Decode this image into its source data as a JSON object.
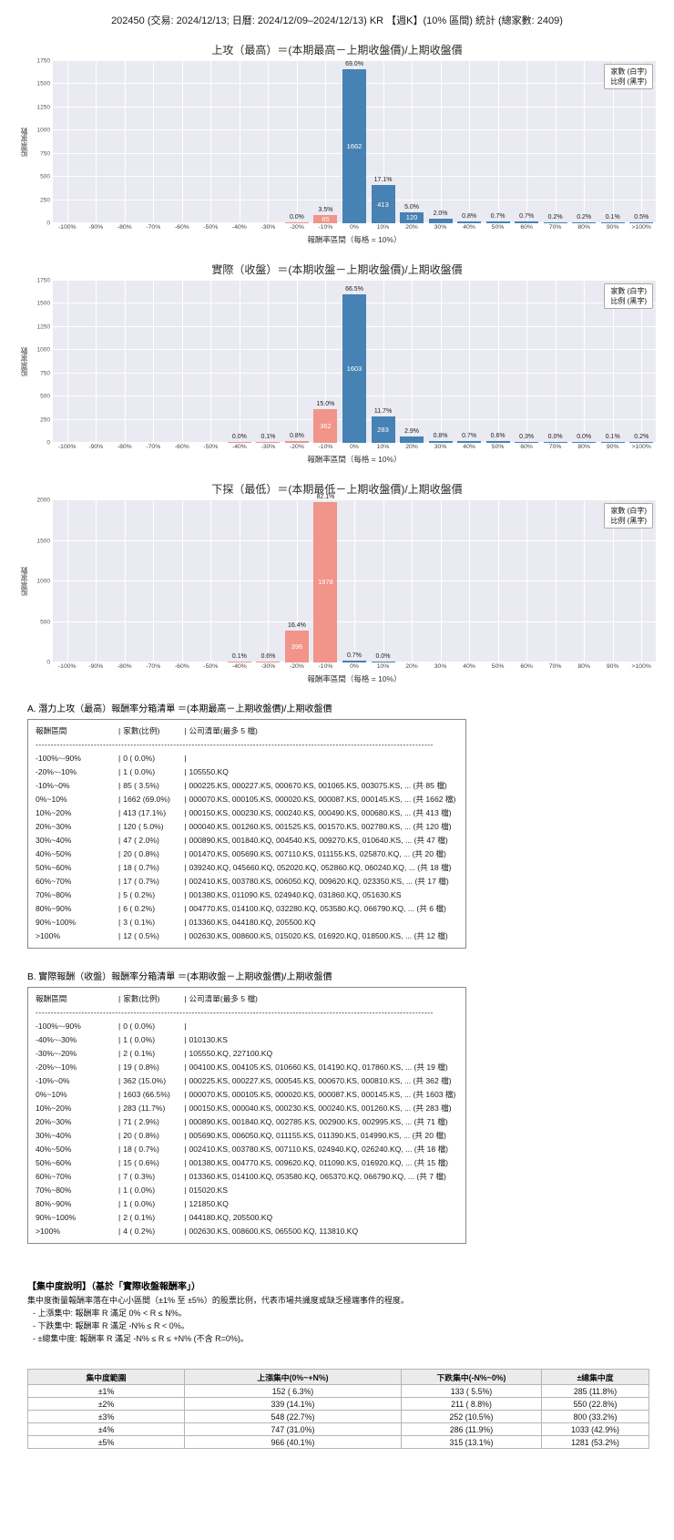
{
  "page_title": "202450 (交易: 2024/12/13; 日曆: 2024/12/09–2024/12/13) KR 【週K】(10% 區間) 統計 (總家數: 2409)",
  "total_companies": 2409,
  "colors": {
    "bar_negative": "#f1948a",
    "bar_positive": "#4682b4",
    "plot_bg": "#eaeaf2",
    "grid": "#ffffff",
    "table_header_bg": "#ebebeb"
  },
  "legend": {
    "counts_label": "家數 (白字)",
    "pct_label": "比例 (黑字)"
  },
  "chart_data": [
    {
      "type": "bar",
      "key": "upside-high",
      "title": "上攻（最高）＝(本期最高－上期收盤價)/上期收盤價",
      "xlabel": "報酬率區間（每格 = 10%）",
      "ylabel": "股票家數",
      "ylim": [
        0,
        1750
      ],
      "yticks": [
        0,
        250,
        500,
        750,
        1000,
        1250,
        1500,
        1750
      ],
      "categories": [
        "-100%",
        "-90%",
        "-80%",
        "-70%",
        "-60%",
        "-50%",
        "-40%",
        "-30%",
        "-20%",
        "-10%",
        "0%",
        "10%",
        "20%",
        "30%",
        "40%",
        "50%",
        "60%",
        "70%",
        "80%",
        "90%",
        ">100%"
      ],
      "counts": [
        0,
        0,
        0,
        0,
        0,
        0,
        0,
        0,
        1,
        85,
        1662,
        413,
        120,
        47,
        20,
        18,
        17,
        5,
        6,
        3,
        12
      ],
      "pct_labels": [
        "",
        "",
        "",
        "",
        "",
        "",
        "",
        "",
        "0.0%",
        "3.5%",
        "69.0%",
        "17.1%",
        "5.0%",
        "2.0%",
        "0.8%",
        "0.7%",
        "0.7%",
        "0.2%",
        "0.2%",
        "0.1%",
        "0.5%"
      ],
      "count_labels": [
        "",
        "",
        "",
        "",
        "",
        "",
        "",
        "",
        "",
        "85",
        "1662",
        "413",
        "120",
        "",
        "",
        "",
        "",
        "",
        "",
        "",
        ""
      ]
    },
    {
      "type": "bar",
      "key": "actual-close",
      "title": "實際（收盤）＝(本期收盤－上期收盤價)/上期收盤價",
      "xlabel": "報酬率區間（每格 = 10%）",
      "ylabel": "股票家數",
      "ylim": [
        0,
        1750
      ],
      "yticks": [
        0,
        250,
        500,
        750,
        1000,
        1250,
        1500,
        1750
      ],
      "categories": [
        "-100%",
        "-90%",
        "-80%",
        "-70%",
        "-60%",
        "-50%",
        "-40%",
        "-30%",
        "-20%",
        "-10%",
        "0%",
        "10%",
        "20%",
        "30%",
        "40%",
        "50%",
        "60%",
        "70%",
        "80%",
        "90%",
        ">100%"
      ],
      "counts": [
        0,
        0,
        0,
        0,
        0,
        0,
        1,
        2,
        19,
        362,
        1603,
        283,
        71,
        20,
        18,
        15,
        7,
        1,
        1,
        2,
        4
      ],
      "pct_labels": [
        "",
        "",
        "",
        "",
        "",
        "",
        "0.0%",
        "0.1%",
        "0.8%",
        "15.0%",
        "66.5%",
        "11.7%",
        "2.9%",
        "0.8%",
        "0.7%",
        "0.6%",
        "0.3%",
        "0.0%",
        "0.0%",
        "0.1%",
        "0.2%"
      ],
      "count_labels": [
        "",
        "",
        "",
        "",
        "",
        "",
        "",
        "",
        "",
        "362",
        "1603",
        "283",
        "",
        "",
        "",
        "",
        "",
        "",
        "",
        "",
        ""
      ]
    },
    {
      "type": "bar",
      "key": "downside-low",
      "title": "下探（最低）＝(本期最低－上期收盤價)/上期收盤價",
      "xlabel": "報酬率區間（每格 = 10%）",
      "ylabel": "股票家數",
      "ylim": [
        0,
        2000
      ],
      "yticks": [
        0,
        500,
        1000,
        1500,
        2000
      ],
      "categories": [
        "-100%",
        "-90%",
        "-80%",
        "-70%",
        "-60%",
        "-50%",
        "-40%",
        "-30%",
        "-20%",
        "-10%",
        "0%",
        "10%",
        "20%",
        "30%",
        "40%",
        "50%",
        "60%",
        "70%",
        "80%",
        "90%",
        ">100%"
      ],
      "counts": [
        0,
        0,
        0,
        0,
        0,
        0,
        2,
        14,
        396,
        1978,
        18,
        1,
        0,
        0,
        0,
        0,
        0,
        0,
        0,
        0,
        0
      ],
      "pct_labels": [
        "",
        "",
        "",
        "",
        "",
        "",
        "0.1%",
        "0.6%",
        "16.4%",
        "82.1%",
        "0.7%",
        "0.0%",
        "",
        "",
        "",
        "",
        "",
        "",
        "",
        "",
        ""
      ],
      "count_labels": [
        "",
        "",
        "",
        "",
        "",
        "",
        "",
        "",
        "396",
        "1978",
        "",
        "",
        "",
        "",
        "",
        "",
        "",
        "",
        "",
        "",
        ""
      ]
    }
  ],
  "list_a": {
    "heading": "A. 潛力上攻（最高）報酬率分箱清單 ＝(本期最高－上期收盤價)/上期收盤價",
    "header": {
      "range": "報酬區間",
      "count": "家數(比例)",
      "companies": "公司清單(最多 5 檔)"
    },
    "rows": [
      {
        "range": "-100%~-90%",
        "count": "0 ( 0.0%)",
        "companies": ""
      },
      {
        "range": "-20%~-10%",
        "count": "1 ( 0.0%)",
        "companies": "105550.KQ"
      },
      {
        "range": "-10%~0%",
        "count": "85 ( 3.5%)",
        "companies": "000225.KS, 000227.KS, 000670.KS, 001065.KS, 003075.KS, ... (共 85 檔)"
      },
      {
        "range": "0%~10%",
        "count": "1662 (69.0%)",
        "companies": "000070.KS, 000105.KS, 000020.KS, 000087.KS, 000145.KS, ... (共 1662 檔)"
      },
      {
        "range": "10%~20%",
        "count": "413 (17.1%)",
        "companies": "000150.KS, 000230.KS, 000240.KS, 000490.KS, 000680.KS, ... (共 413 檔)"
      },
      {
        "range": "20%~30%",
        "count": "120 ( 5.0%)",
        "companies": "000040.KS, 001260.KS, 001525.KS, 001570.KS, 002780.KS, ... (共 120 檔)"
      },
      {
        "range": "30%~40%",
        "count": "47 ( 2.0%)",
        "companies": "000890.KS, 001840.KQ, 004540.KS, 009270.KS, 010640.KS, ... (共 47 檔)"
      },
      {
        "range": "40%~50%",
        "count": "20 ( 0.8%)",
        "companies": "001470.KS, 005690.KS, 007110.KS, 011155.KS, 025870.KQ, ... (共 20 檔)"
      },
      {
        "range": "50%~60%",
        "count": "18 ( 0.7%)",
        "companies": "039240.KQ, 045660.KQ, 052020.KQ, 052860.KQ, 060240.KQ, ... (共 18 檔)"
      },
      {
        "range": "60%~70%",
        "count": "17 ( 0.7%)",
        "companies": "002410.KS, 003780.KS, 006050.KQ, 009620.KQ, 023350.KS, ... (共 17 檔)"
      },
      {
        "range": "70%~80%",
        "count": "5 ( 0.2%)",
        "companies": "001380.KS, 011090.KS, 024940.KQ, 031860.KQ, 051630.KS"
      },
      {
        "range": "80%~90%",
        "count": "6 ( 0.2%)",
        "companies": "004770.KS, 014100.KQ, 032280.KQ, 053580.KQ, 066790.KQ, ... (共 6 檔)"
      },
      {
        "range": "90%~100%",
        "count": "3 ( 0.1%)",
        "companies": "013360.KS, 044180.KQ, 205500.KQ"
      },
      {
        "range": ">100%",
        "count": "12 ( 0.5%)",
        "companies": "002630.KS, 008600.KS, 015020.KS, 016920.KQ, 018500.KS, ... (共 12 檔)"
      }
    ]
  },
  "list_b": {
    "heading": "B. 實際報酬（收盤）報酬率分箱清單 ＝(本期收盤－上期收盤價)/上期收盤價",
    "header": {
      "range": "報酬區間",
      "count": "家數(比例)",
      "companies": "公司清單(最多 5 檔)"
    },
    "rows": [
      {
        "range": "-100%~-90%",
        "count": "0 ( 0.0%)",
        "companies": ""
      },
      {
        "range": "-40%~-30%",
        "count": "1 ( 0.0%)",
        "companies": "010130.KS"
      },
      {
        "range": "-30%~-20%",
        "count": "2 ( 0.1%)",
        "companies": "105550.KQ, 227100.KQ"
      },
      {
        "range": "-20%~-10%",
        "count": "19 ( 0.8%)",
        "companies": "004100.KS, 004105.KS, 010660.KS, 014190.KQ, 017860.KS, ... (共 19 檔)"
      },
      {
        "range": "-10%~0%",
        "count": "362 (15.0%)",
        "companies": "000225.KS, 000227.KS, 000545.KS, 000670.KS, 000810.KS, ... (共 362 檔)"
      },
      {
        "range": "0%~10%",
        "count": "1603 (66.5%)",
        "companies": "000070.KS, 000105.KS, 000020.KS, 000087.KS, 000145.KS, ... (共 1603 檔)"
      },
      {
        "range": "10%~20%",
        "count": "283 (11.7%)",
        "companies": "000150.KS, 000040.KS, 000230.KS, 000240.KS, 001260.KS, ... (共 283 檔)"
      },
      {
        "range": "20%~30%",
        "count": "71 ( 2.9%)",
        "companies": "000890.KS, 001840.KQ, 002785.KS, 002900.KS, 002995.KS, ... (共 71 檔)"
      },
      {
        "range": "30%~40%",
        "count": "20 ( 0.8%)",
        "companies": "005690.KS, 006050.KQ, 011155.KS, 011390.KS, 014990.KS, ... (共 20 檔)"
      },
      {
        "range": "40%~50%",
        "count": "18 ( 0.7%)",
        "companies": "002410.KS, 003780.KS, 007110.KS, 024940.KQ, 026240.KQ, ... (共 18 檔)"
      },
      {
        "range": "50%~60%",
        "count": "15 ( 0.6%)",
        "companies": "001380.KS, 004770.KS, 009620.KQ, 011090.KS, 016920.KQ, ... (共 15 檔)"
      },
      {
        "range": "60%~70%",
        "count": "7 ( 0.3%)",
        "companies": "013360.KS, 014100.KQ, 053580.KQ, 065370.KQ, 066790.KQ, ... (共 7 檔)"
      },
      {
        "range": "70%~80%",
        "count": "1 ( 0.0%)",
        "companies": "015020.KS"
      },
      {
        "range": "80%~90%",
        "count": "1 ( 0.0%)",
        "companies": "121850.KQ"
      },
      {
        "range": "90%~100%",
        "count": "2 ( 0.1%)",
        "companies": "044180.KQ, 205500.KQ"
      },
      {
        "range": ">100%",
        "count": "4 ( 0.2%)",
        "companies": "002630.KS, 008600.KS, 065500.KQ, 113810.KQ"
      }
    ]
  },
  "concentration": {
    "heading": "【集中度說明】（基於「實際收盤報酬率」）",
    "description": "集中度衡量報酬率落在中心小區間（±1% 至 ±5%）的股票比例，代表市場共識度或缺乏極端事件的程度。",
    "bullets": [
      "- 上漲集中: 報酬率 R 滿足 0% < R ≤ N%。",
      "- 下跌集中: 報酬率 R 滿足 -N% ≤ R < 0%。",
      "- ±總集中度: 報酬率 R 滿足 -N% ≤ R ≤ +N% (不含 R=0%)。"
    ],
    "table": {
      "headers": [
        "集中度範圍",
        "上漲集中(0%~+N%)",
        "下跌集中(-N%~0%)",
        "±總集中度"
      ],
      "rows": [
        [
          "±1%",
          "152 ( 6.3%)",
          "133 ( 5.5%)",
          "285 (11.8%)"
        ],
        [
          "±2%",
          "339 (14.1%)",
          "211 ( 8.8%)",
          "550 (22.8%)"
        ],
        [
          "±3%",
          "548 (22.7%)",
          "252 (10.5%)",
          "800 (33.2%)"
        ],
        [
          "±4%",
          "747 (31.0%)",
          "286 (11.9%)",
          "1033 (42.9%)"
        ],
        [
          "±5%",
          "966 (40.1%)",
          "315 (13.1%)",
          "1281 (53.2%)"
        ]
      ]
    }
  }
}
